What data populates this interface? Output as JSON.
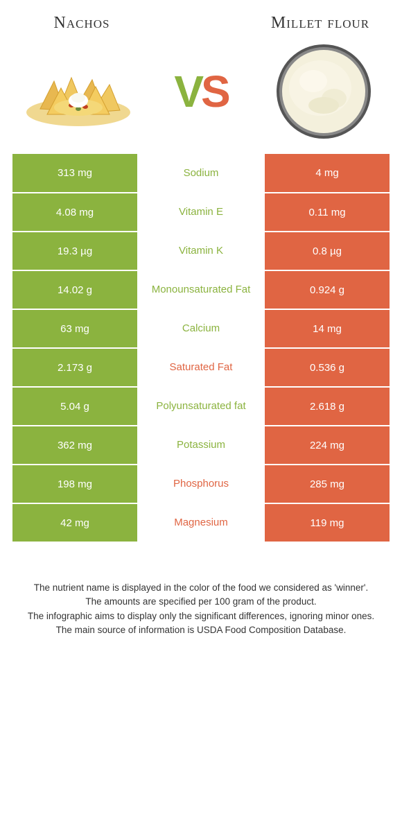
{
  "food_left": {
    "name": "Nachos",
    "color": "#8bb33f"
  },
  "food_right": {
    "name": "Millet flour",
    "color": "#e06543"
  },
  "rows": [
    {
      "left": "313 mg",
      "nutrient": "Sodium",
      "right": "4 mg",
      "winner": "left"
    },
    {
      "left": "4.08 mg",
      "nutrient": "Vitamin E",
      "right": "0.11 mg",
      "winner": "left"
    },
    {
      "left": "19.3 µg",
      "nutrient": "Vitamin K",
      "right": "0.8 µg",
      "winner": "left"
    },
    {
      "left": "14.02 g",
      "nutrient": "Monounsaturated Fat",
      "right": "0.924 g",
      "winner": "left"
    },
    {
      "left": "63 mg",
      "nutrient": "Calcium",
      "right": "14 mg",
      "winner": "left"
    },
    {
      "left": "2.173 g",
      "nutrient": "Saturated Fat",
      "right": "0.536 g",
      "winner": "right"
    },
    {
      "left": "5.04 g",
      "nutrient": "Polyunsaturated fat",
      "right": "2.618 g",
      "winner": "left"
    },
    {
      "left": "362 mg",
      "nutrient": "Potassium",
      "right": "224 mg",
      "winner": "left"
    },
    {
      "left": "198 mg",
      "nutrient": "Phosphorus",
      "right": "285 mg",
      "winner": "right"
    },
    {
      "left": "42 mg",
      "nutrient": "Magnesium",
      "right": "119 mg",
      "winner": "right"
    }
  ],
  "footer_lines": [
    "The nutrient name is displayed in the color of the food we considered as 'winner'.",
    "The amounts are specified per 100 gram of the product.",
    "The infographic aims to display only the significant differences, ignoring minor ones.",
    "The main source of information is USDA Food Composition Database."
  ],
  "colors": {
    "left_bg": "#8bb33f",
    "right_bg": "#e06543",
    "mid_left_text": "#8bb33f",
    "mid_right_text": "#e06543"
  }
}
